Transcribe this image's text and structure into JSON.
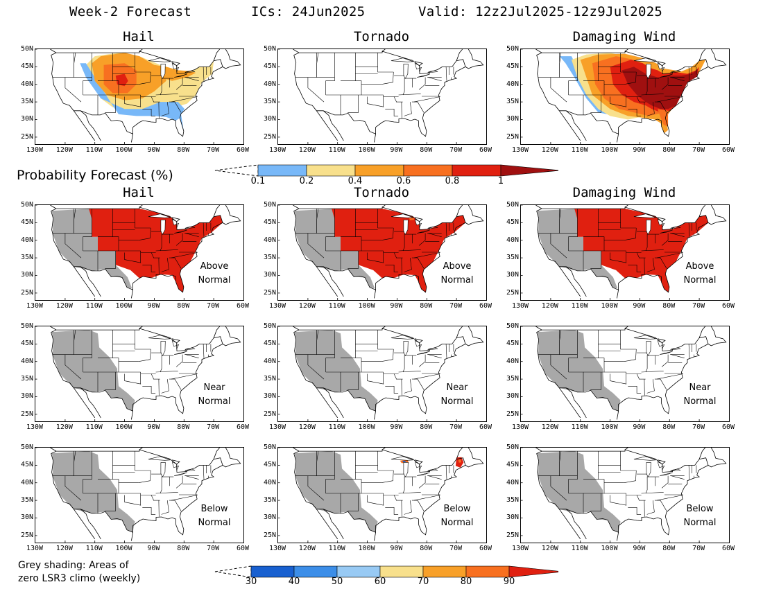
{
  "header": {
    "title": "Week-2 Forecast",
    "ics": "ICs: 24Jun2025",
    "valid": "Valid: 12z2Jul2025-12z9Jul2025"
  },
  "columns": [
    "Hail",
    "Tornado",
    "Damaging Wind"
  ],
  "rows": [
    "",
    "Above\nNormal",
    "Near\nNormal",
    "Below\nNormal"
  ],
  "row_labels": {
    "above": [
      "Above",
      "Normal"
    ],
    "near": [
      "Near",
      "Normal"
    ],
    "below": [
      "Below",
      "Normal"
    ]
  },
  "axes": {
    "lat_ticks": [
      "50N",
      "45N",
      "40N",
      "35N",
      "30N",
      "25N"
    ],
    "lon_ticks": [
      "130W",
      "120W",
      "110W",
      "100W",
      "90W",
      "80W",
      "70W",
      "60W"
    ]
  },
  "probability_legend": {
    "title": "Probability Forecast (%)",
    "ticks": [
      "0.1",
      "0.2",
      "0.4",
      "0.6",
      "0.8",
      "1"
    ],
    "colors": [
      "#78b8f8",
      "#f8e08c",
      "#f8a028",
      "#f87020",
      "#e02010",
      "#a01010"
    ]
  },
  "anomaly_legend": {
    "ticks": [
      "30",
      "40",
      "50",
      "60",
      "70",
      "80",
      "90"
    ],
    "colors": [
      "#1860d0",
      "#3c8ee8",
      "#98caf4",
      "#f8e08c",
      "#f8a028",
      "#f87020",
      "#e02010"
    ]
  },
  "footnote": {
    "line1": "Grey shading: Areas of",
    "line2": "zero LSR3 climo (weekly)"
  },
  "colors": {
    "grey_shading": "#a8a8a8",
    "above_fill": "#e02010"
  }
}
